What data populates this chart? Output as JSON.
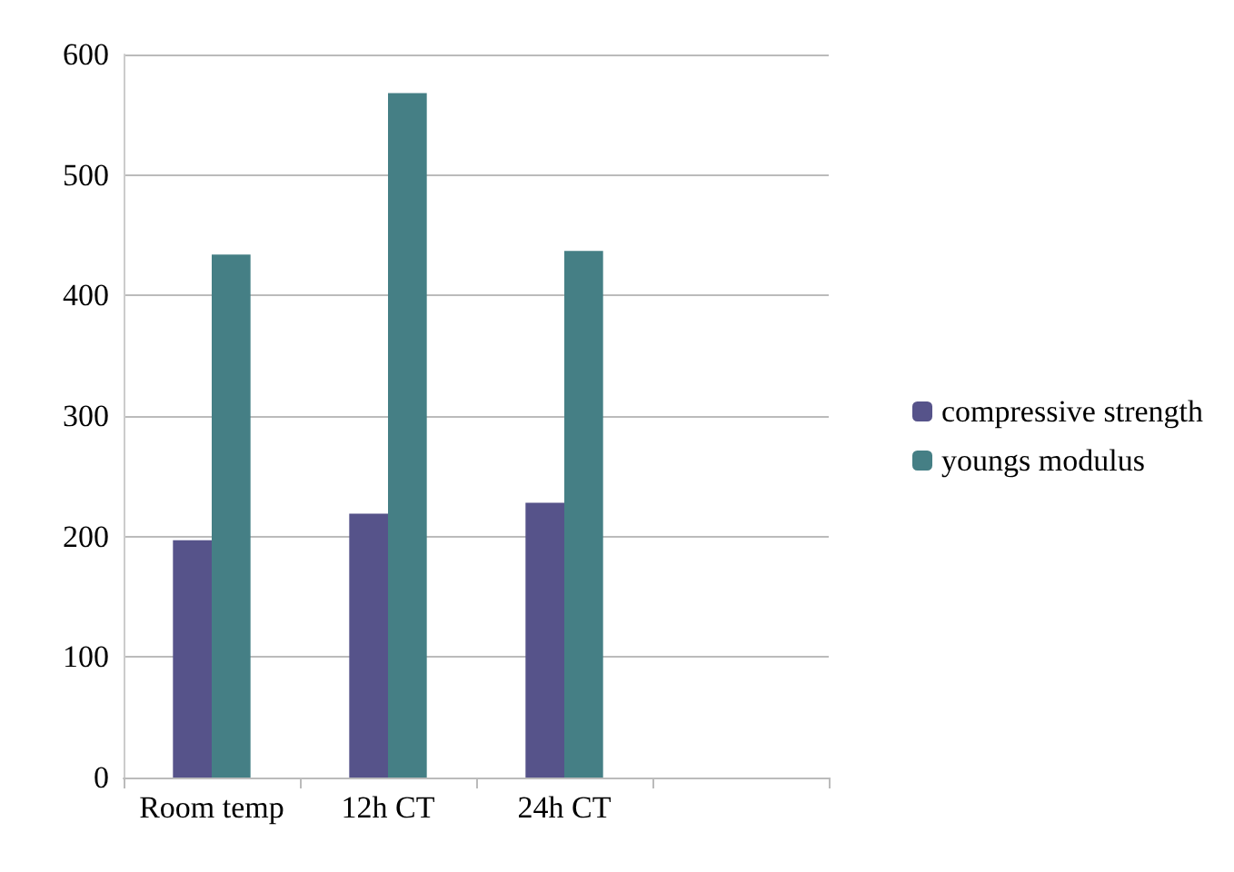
{
  "chart_data": {
    "type": "bar",
    "categories": [
      "Room temp",
      "12h CT",
      "24h CT",
      null
    ],
    "series": [
      {
        "name": "compressive strength",
        "color": "#56538a",
        "values": [
          197,
          219,
          228,
          null
        ]
      },
      {
        "name": "youngs modulus",
        "color": "#457f85",
        "values": [
          434,
          568,
          437,
          null
        ]
      }
    ],
    "ylim": [
      0,
      600
    ],
    "yticks": [
      0,
      100,
      200,
      300,
      400,
      500,
      600
    ],
    "grid": "y",
    "legend": "right"
  }
}
